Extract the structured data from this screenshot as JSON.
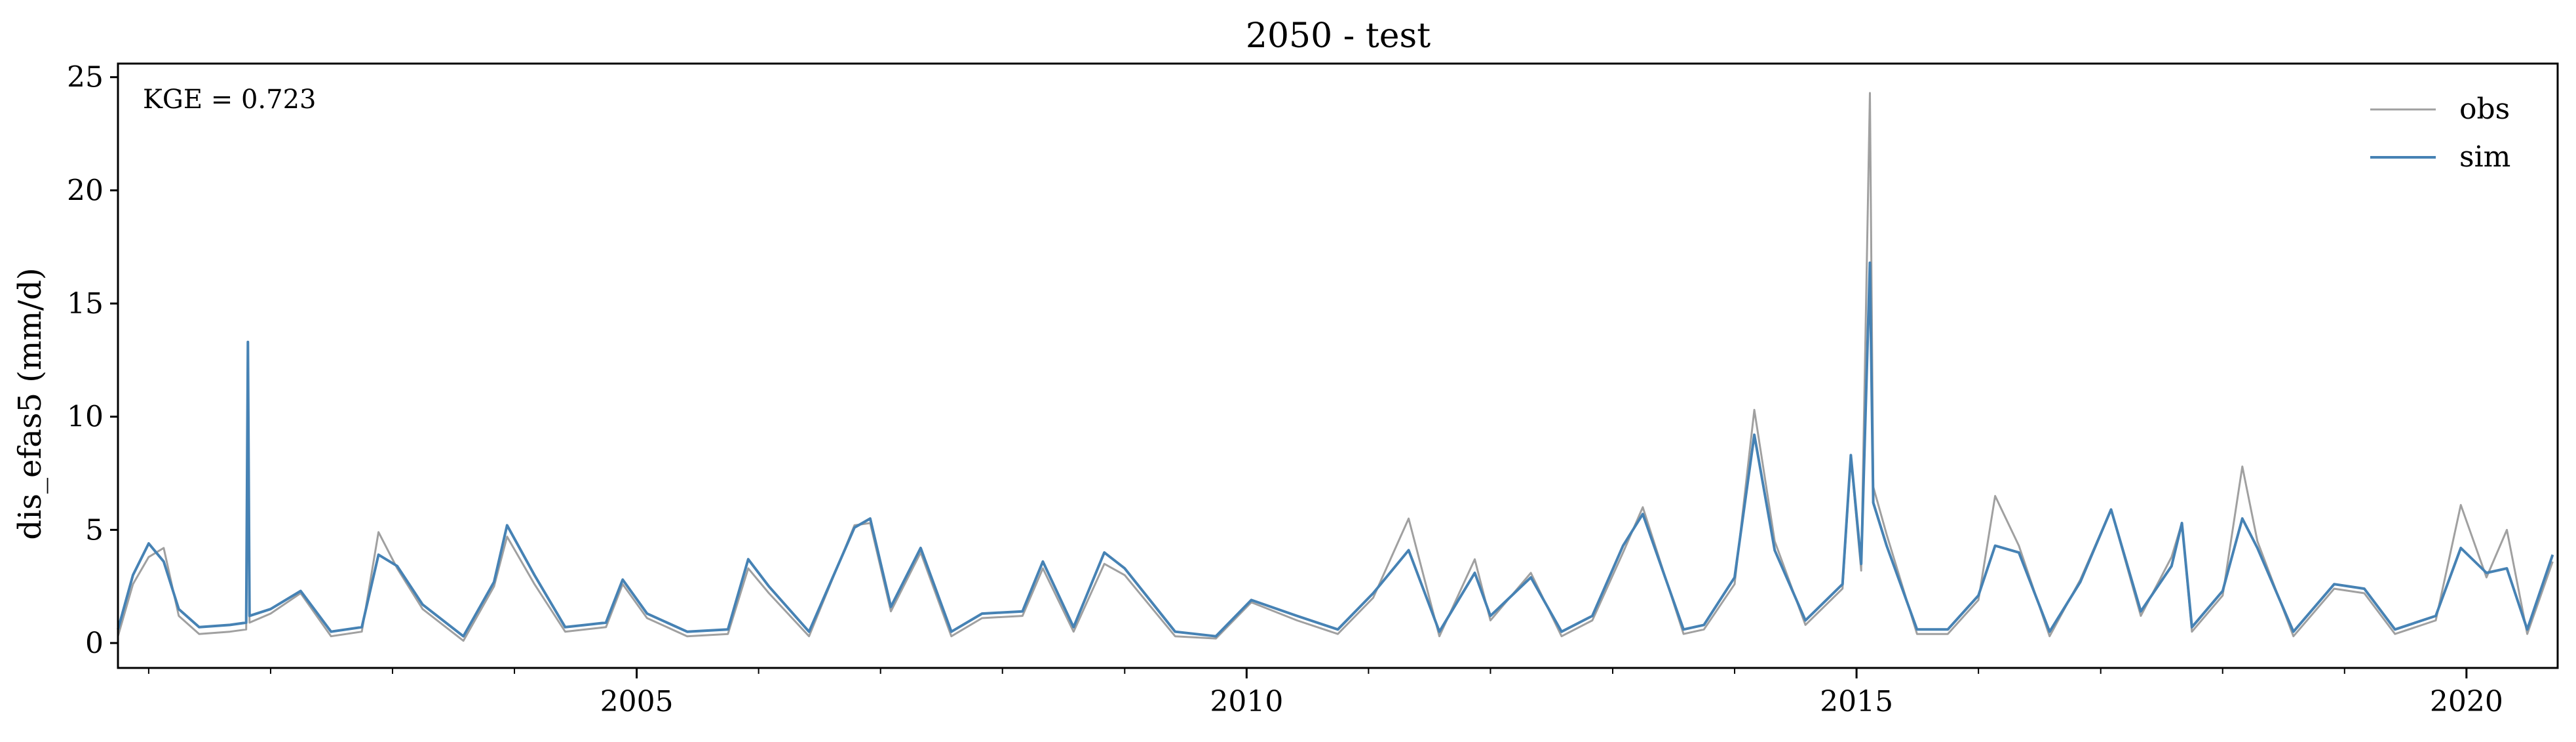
{
  "chart_data": {
    "type": "line",
    "title": "2050 - test",
    "xlabel": "",
    "ylabel": "dis_efas5 (mm/d)",
    "annotation": "KGE = 0.723",
    "xlim": [
      "2000-10-01",
      "2020-09-30"
    ],
    "ylim": [
      -1.1,
      25.6
    ],
    "x_ticks": [
      {
        "label": "2005",
        "date": "2005-01-01"
      },
      {
        "label": "2010",
        "date": "2010-01-01"
      },
      {
        "label": "2015",
        "date": "2015-01-01"
      },
      {
        "label": "2020",
        "date": "2020-01-01"
      }
    ],
    "y_ticks": [
      0,
      5,
      10,
      15,
      20,
      25
    ],
    "grid": false,
    "legend": {
      "position": "top-right",
      "entries": [
        "obs",
        "sim"
      ]
    },
    "series": [
      {
        "name": "obs",
        "color": "#a0a0a0",
        "points": [
          [
            "2000-10-01",
            0.3
          ],
          [
            "2000-11-15",
            2.6
          ],
          [
            "2001-01-01",
            3.8
          ],
          [
            "2001-02-15",
            4.2
          ],
          [
            "2001-04-01",
            1.2
          ],
          [
            "2001-06-01",
            0.4
          ],
          [
            "2001-09-01",
            0.5
          ],
          [
            "2001-10-20",
            0.6
          ],
          [
            "2001-10-25",
            9.6
          ],
          [
            "2001-10-30",
            0.9
          ],
          [
            "2002-01-01",
            1.3
          ],
          [
            "2002-04-01",
            2.2
          ],
          [
            "2002-07-01",
            0.3
          ],
          [
            "2002-10-01",
            0.5
          ],
          [
            "2002-11-20",
            4.9
          ],
          [
            "2003-01-15",
            3.3
          ],
          [
            "2003-04-01",
            1.5
          ],
          [
            "2003-08-01",
            0.1
          ],
          [
            "2003-11-01",
            2.5
          ],
          [
            "2003-12-10",
            4.7
          ],
          [
            "2004-03-01",
            2.6
          ],
          [
            "2004-06-01",
            0.5
          ],
          [
            "2004-10-01",
            0.7
          ],
          [
            "2004-11-20",
            2.6
          ],
          [
            "2005-02-01",
            1.1
          ],
          [
            "2005-06-01",
            0.3
          ],
          [
            "2005-10-01",
            0.4
          ],
          [
            "2005-12-01",
            3.3
          ],
          [
            "2006-02-01",
            2.2
          ],
          [
            "2006-06-01",
            0.3
          ],
          [
            "2006-10-15",
            5.2
          ],
          [
            "2006-12-01",
            5.3
          ],
          [
            "2007-02-01",
            1.4
          ],
          [
            "2007-05-01",
            4.0
          ],
          [
            "2007-08-01",
            0.3
          ],
          [
            "2007-11-01",
            1.1
          ],
          [
            "2008-03-01",
            1.2
          ],
          [
            "2008-05-01",
            3.3
          ],
          [
            "2008-08-01",
            0.5
          ],
          [
            "2008-11-01",
            3.5
          ],
          [
            "2009-01-01",
            3.0
          ],
          [
            "2009-06-01",
            0.3
          ],
          [
            "2009-10-01",
            0.2
          ],
          [
            "2010-01-15",
            1.8
          ],
          [
            "2010-06-01",
            1.0
          ],
          [
            "2010-10-01",
            0.4
          ],
          [
            "2011-01-15",
            2.0
          ],
          [
            "2011-05-01",
            5.5
          ],
          [
            "2011-08-01",
            0.3
          ],
          [
            "2011-11-15",
            3.7
          ],
          [
            "2012-01-01",
            1.0
          ],
          [
            "2012-05-01",
            3.1
          ],
          [
            "2012-08-01",
            0.3
          ],
          [
            "2012-11-01",
            1.0
          ],
          [
            "2013-02-01",
            4.0
          ],
          [
            "2013-04-01",
            6.0
          ],
          [
            "2013-08-01",
            0.4
          ],
          [
            "2013-10-01",
            0.6
          ],
          [
            "2014-01-01",
            2.6
          ],
          [
            "2014-03-01",
            10.3
          ],
          [
            "2014-05-01",
            4.5
          ],
          [
            "2014-08-01",
            0.8
          ],
          [
            "2014-11-20",
            2.4
          ],
          [
            "2014-12-15",
            8.2
          ],
          [
            "2015-01-15",
            3.2
          ],
          [
            "2015-02-10",
            24.3
          ],
          [
            "2015-02-20",
            6.9
          ],
          [
            "2015-04-01",
            4.8
          ],
          [
            "2015-07-01",
            0.4
          ],
          [
            "2015-10-01",
            0.4
          ],
          [
            "2016-01-01",
            1.9
          ],
          [
            "2016-02-20",
            6.5
          ],
          [
            "2016-05-01",
            4.3
          ],
          [
            "2016-08-01",
            0.3
          ],
          [
            "2016-11-01",
            2.8
          ],
          [
            "2017-02-01",
            5.9
          ],
          [
            "2017-05-01",
            1.2
          ],
          [
            "2017-08-01",
            3.8
          ],
          [
            "2017-09-01",
            5.3
          ],
          [
            "2017-10-01",
            0.5
          ],
          [
            "2018-01-01",
            2.1
          ],
          [
            "2018-03-01",
            7.8
          ],
          [
            "2018-04-15",
            4.5
          ],
          [
            "2018-08-01",
            0.3
          ],
          [
            "2018-12-01",
            2.4
          ],
          [
            "2019-03-01",
            2.2
          ],
          [
            "2019-06-01",
            0.4
          ],
          [
            "2019-10-01",
            1.0
          ],
          [
            "2019-12-15",
            6.1
          ],
          [
            "2020-03-01",
            2.9
          ],
          [
            "2020-05-01",
            5.0
          ],
          [
            "2020-07-01",
            0.4
          ],
          [
            "2020-09-15",
            3.6
          ]
        ]
      },
      {
        "name": "sim",
        "color": "#4682b4",
        "points": [
          [
            "2000-10-01",
            0.6
          ],
          [
            "2000-11-15",
            3.0
          ],
          [
            "2001-01-01",
            4.4
          ],
          [
            "2001-02-15",
            3.6
          ],
          [
            "2001-04-01",
            1.5
          ],
          [
            "2001-06-01",
            0.7
          ],
          [
            "2001-09-01",
            0.8
          ],
          [
            "2001-10-20",
            0.9
          ],
          [
            "2001-10-25",
            13.3
          ],
          [
            "2001-10-30",
            1.2
          ],
          [
            "2002-01-01",
            1.5
          ],
          [
            "2002-04-01",
            2.3
          ],
          [
            "2002-07-01",
            0.5
          ],
          [
            "2002-10-01",
            0.7
          ],
          [
            "2002-11-20",
            3.9
          ],
          [
            "2003-01-15",
            3.4
          ],
          [
            "2003-04-01",
            1.7
          ],
          [
            "2003-08-01",
            0.3
          ],
          [
            "2003-11-01",
            2.7
          ],
          [
            "2003-12-10",
            5.2
          ],
          [
            "2004-03-01",
            3.0
          ],
          [
            "2004-06-01",
            0.7
          ],
          [
            "2004-10-01",
            0.9
          ],
          [
            "2004-11-20",
            2.8
          ],
          [
            "2005-02-01",
            1.3
          ],
          [
            "2005-06-01",
            0.5
          ],
          [
            "2005-10-01",
            0.6
          ],
          [
            "2005-12-01",
            3.7
          ],
          [
            "2006-02-01",
            2.5
          ],
          [
            "2006-06-01",
            0.5
          ],
          [
            "2006-10-15",
            5.1
          ],
          [
            "2006-12-01",
            5.5
          ],
          [
            "2007-02-01",
            1.6
          ],
          [
            "2007-05-01",
            4.2
          ],
          [
            "2007-08-01",
            0.5
          ],
          [
            "2007-11-01",
            1.3
          ],
          [
            "2008-03-01",
            1.4
          ],
          [
            "2008-05-01",
            3.6
          ],
          [
            "2008-08-01",
            0.7
          ],
          [
            "2008-11-01",
            4.0
          ],
          [
            "2009-01-01",
            3.3
          ],
          [
            "2009-06-01",
            0.5
          ],
          [
            "2009-10-01",
            0.3
          ],
          [
            "2010-01-15",
            1.9
          ],
          [
            "2010-06-01",
            1.2
          ],
          [
            "2010-10-01",
            0.6
          ],
          [
            "2011-01-15",
            2.2
          ],
          [
            "2011-05-01",
            4.1
          ],
          [
            "2011-08-01",
            0.5
          ],
          [
            "2011-11-15",
            3.1
          ],
          [
            "2012-01-01",
            1.2
          ],
          [
            "2012-05-01",
            2.9
          ],
          [
            "2012-08-01",
            0.5
          ],
          [
            "2012-11-01",
            1.2
          ],
          [
            "2013-02-01",
            4.3
          ],
          [
            "2013-04-01",
            5.7
          ],
          [
            "2013-08-01",
            0.6
          ],
          [
            "2013-10-01",
            0.8
          ],
          [
            "2014-01-01",
            2.9
          ],
          [
            "2014-03-01",
            9.2
          ],
          [
            "2014-05-01",
            4.1
          ],
          [
            "2014-08-01",
            1.0
          ],
          [
            "2014-11-20",
            2.6
          ],
          [
            "2014-12-15",
            8.3
          ],
          [
            "2015-01-15",
            3.5
          ],
          [
            "2015-02-10",
            16.8
          ],
          [
            "2015-02-20",
            6.2
          ],
          [
            "2015-04-01",
            4.3
          ],
          [
            "2015-07-01",
            0.6
          ],
          [
            "2015-10-01",
            0.6
          ],
          [
            "2016-01-01",
            2.1
          ],
          [
            "2016-02-20",
            4.3
          ],
          [
            "2016-05-01",
            4.0
          ],
          [
            "2016-08-01",
            0.5
          ],
          [
            "2016-11-01",
            2.7
          ],
          [
            "2017-02-01",
            5.9
          ],
          [
            "2017-05-01",
            1.4
          ],
          [
            "2017-08-01",
            3.4
          ],
          [
            "2017-09-01",
            5.3
          ],
          [
            "2017-10-01",
            0.7
          ],
          [
            "2018-01-01",
            2.3
          ],
          [
            "2018-03-01",
            5.5
          ],
          [
            "2018-04-15",
            4.2
          ],
          [
            "2018-08-01",
            0.5
          ],
          [
            "2018-12-01",
            2.6
          ],
          [
            "2019-03-01",
            2.4
          ],
          [
            "2019-06-01",
            0.6
          ],
          [
            "2019-10-01",
            1.2
          ],
          [
            "2019-12-15",
            4.2
          ],
          [
            "2020-03-01",
            3.1
          ],
          [
            "2020-05-01",
            3.3
          ],
          [
            "2020-07-01",
            0.6
          ],
          [
            "2020-09-15",
            3.9
          ]
        ]
      }
    ]
  }
}
